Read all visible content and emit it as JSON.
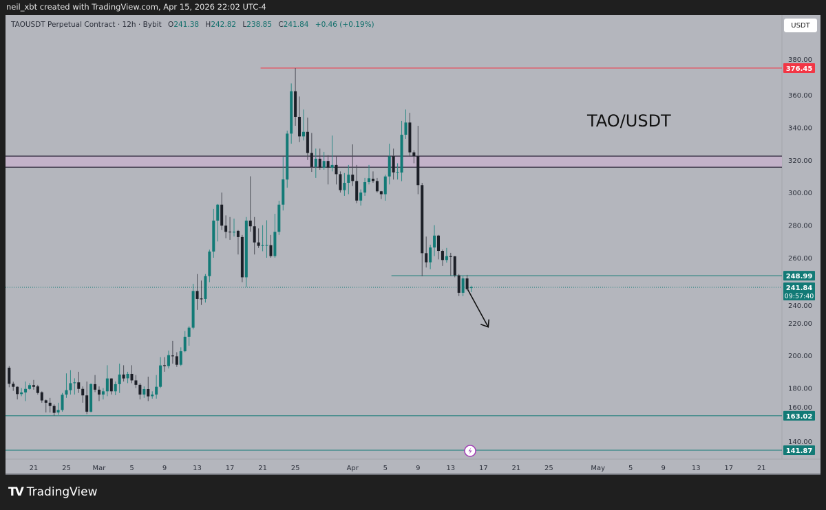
{
  "credit": "neil_xbt created with TradingView.com, Apr 15, 2026 22:02 UTC-4",
  "legend": {
    "symbol": "TAOUSDT Perpetual Contract · 12h · Bybit",
    "o_label": "O",
    "o": "241.38",
    "h_label": "H",
    "h": "242.82",
    "l_label": "L",
    "l": "238.85",
    "c_label": "C",
    "c": "241.84",
    "change": "+0.46 (+0.19%)"
  },
  "currency": "USDT",
  "annotation_text": "TAO/USDT",
  "brand": "TradingView",
  "colors": {
    "up": "#127a76",
    "down": "#1c1f27",
    "resistance": "#f23645",
    "level": "#127a76",
    "zone_fill": "#c3b2c9",
    "zone_line": "#2a2438",
    "bg": "#b4b6bd"
  },
  "chart_data": {
    "type": "candlestick",
    "title": "TAOUSDT Perpetual Contract · 12h · Bybit",
    "interval": "12h",
    "ylim": [
      136,
      383
    ],
    "y_ticks": [
      "380.00",
      "360.00",
      "340.00",
      "320.00",
      "300.00",
      "280.00",
      "260.00",
      "240.00",
      "220.00",
      "200.00",
      "180.00",
      "160.00",
      "140.00"
    ],
    "x_ticks": [
      {
        "label": "21",
        "index": 6
      },
      {
        "label": "25",
        "index": 14
      },
      {
        "label": "Mar",
        "index": 22
      },
      {
        "label": "5",
        "index": 30
      },
      {
        "label": "9",
        "index": 38
      },
      {
        "label": "13",
        "index": 46
      },
      {
        "label": "17",
        "index": 54
      },
      {
        "label": "21",
        "index": 62
      },
      {
        "label": "25",
        "index": 70
      },
      {
        "label": "Apr",
        "index": 84
      },
      {
        "label": "5",
        "index": 92
      },
      {
        "label": "9",
        "index": 100
      },
      {
        "label": "13",
        "index": 108
      },
      {
        "label": "17",
        "index": 116
      },
      {
        "label": "21",
        "index": 124
      },
      {
        "label": "25",
        "index": 132
      },
      {
        "label": "May",
        "index": 144
      },
      {
        "label": "5",
        "index": 152
      },
      {
        "label": "9",
        "index": 160
      },
      {
        "label": "13",
        "index": 168
      },
      {
        "label": "17",
        "index": 176
      },
      {
        "label": "21",
        "index": 184
      }
    ],
    "candles_ohlc": [
      [
        192.5,
        193.5,
        180.5,
        182.6
      ],
      [
        182.6,
        183.9,
        178.3,
        180.8
      ],
      [
        180.8,
        181,
        173,
        176.3
      ],
      [
        176.3,
        180,
        175,
        177.3
      ],
      [
        177.3,
        184,
        172,
        179.5
      ],
      [
        179.5,
        183,
        179,
        181.8
      ],
      [
        181.8,
        185,
        179,
        180.8
      ],
      [
        181,
        182,
        176,
        177
      ],
      [
        177.4,
        178,
        171,
        172.4
      ],
      [
        172.5,
        173,
        165,
        171
      ],
      [
        171,
        174,
        165,
        169
      ],
      [
        169,
        170,
        163,
        164.8
      ],
      [
        165,
        171,
        163.5,
        166.5
      ],
      [
        166.5,
        177,
        165.5,
        175.9
      ],
      [
        176,
        189,
        174,
        178.7
      ],
      [
        178.7,
        191,
        176,
        183
      ],
      [
        183,
        186,
        176,
        183.5
      ],
      [
        183.5,
        190,
        177,
        179.5
      ],
      [
        179.5,
        181,
        171,
        175.5
      ],
      [
        175.5,
        184,
        164,
        165.5
      ],
      [
        165.5,
        183,
        165,
        182.4
      ],
      [
        182.4,
        188,
        177.5,
        179
      ],
      [
        179,
        181,
        172,
        176
      ],
      [
        176,
        180,
        173,
        178
      ],
      [
        178,
        194,
        175,
        185.9
      ],
      [
        185.9,
        186,
        176,
        178
      ],
      [
        178,
        184,
        175.6,
        182.4
      ],
      [
        182.4,
        195,
        177,
        188.3
      ],
      [
        188.3,
        194,
        184,
        185.9
      ],
      [
        186,
        190,
        183,
        188.7
      ],
      [
        188.7,
        194,
        183,
        184.7
      ],
      [
        184.7,
        188,
        180,
        182
      ],
      [
        182,
        183,
        173,
        176
      ],
      [
        176,
        181,
        174,
        179.4
      ],
      [
        179.4,
        187,
        172,
        174.9
      ],
      [
        175,
        178,
        173.5,
        176
      ],
      [
        176,
        188,
        173.5,
        180.8
      ],
      [
        180.8,
        199,
        180,
        193.9
      ],
      [
        194,
        199,
        190,
        193.5
      ],
      [
        193.5,
        203,
        192,
        200.2
      ],
      [
        200,
        209,
        195,
        199.5
      ],
      [
        199.5,
        202,
        193,
        194.3
      ],
      [
        194.3,
        205,
        193.5,
        202.6
      ],
      [
        202.6,
        215,
        202,
        211.5
      ],
      [
        211.5,
        218,
        206,
        217.1
      ],
      [
        217.1,
        244,
        216,
        239.6
      ],
      [
        239.6,
        250,
        228,
        234.7
      ],
      [
        235,
        246,
        231,
        234.5
      ],
      [
        234.7,
        250,
        232.5,
        248.7
      ],
      [
        248.7,
        265,
        245,
        263.8
      ],
      [
        263.8,
        290,
        260,
        282.8
      ],
      [
        282.8,
        293,
        270,
        292.6
      ],
      [
        292.6,
        300,
        277,
        279.7
      ],
      [
        279.7,
        286,
        272,
        275.9
      ],
      [
        276,
        285,
        271,
        275.8
      ],
      [
        275.5,
        284,
        273,
        276
      ],
      [
        276.5,
        277,
        262,
        272.7
      ],
      [
        272.7,
        274,
        245,
        248
      ],
      [
        248,
        285,
        242,
        282.8
      ],
      [
        282.8,
        310,
        276,
        279.3
      ],
      [
        279.3,
        285,
        262,
        269.4
      ],
      [
        269.4,
        278,
        266,
        267.3
      ],
      [
        267.6,
        280,
        264,
        267.7
      ],
      [
        267.5,
        283,
        260,
        267.8
      ],
      [
        267.7,
        274,
        260,
        261
      ],
      [
        261,
        287,
        260,
        275.9
      ],
      [
        275.9,
        295,
        274,
        292.6
      ],
      [
        292.6,
        322,
        289,
        308.1
      ],
      [
        308,
        338,
        303,
        336.2
      ],
      [
        336.2,
        367,
        330,
        362.2
      ],
      [
        362.2,
        376.45,
        341,
        346.5
      ],
      [
        346.5,
        359,
        331,
        334.5
      ],
      [
        334.5,
        351,
        332,
        337.3
      ],
      [
        337.3,
        346,
        320,
        324.3
      ],
      [
        324.3,
        336.6,
        312.7,
        315.8
      ],
      [
        315.8,
        327,
        309,
        320.8
      ],
      [
        320.8,
        327,
        314,
        315.3
      ],
      [
        315.3,
        325,
        314,
        319.4
      ],
      [
        319.4,
        323,
        305,
        315.3
      ],
      [
        315.3,
        335,
        313,
        317
      ],
      [
        317,
        322,
        305,
        311.3
      ],
      [
        311.3,
        313,
        300,
        301.5
      ],
      [
        301.5,
        312,
        298,
        306
      ],
      [
        306,
        317,
        299,
        311
      ],
      [
        311,
        329.6,
        304,
        307.1
      ],
      [
        307.1,
        317,
        293.5,
        295.1
      ],
      [
        295.1,
        302,
        292,
        300
      ],
      [
        300,
        309,
        298,
        306.4
      ],
      [
        306.4,
        317,
        305,
        308.8
      ],
      [
        308.5,
        313,
        306,
        307.1
      ],
      [
        307.1,
        309,
        300,
        300.8
      ],
      [
        300.8,
        301,
        296,
        299
      ],
      [
        299,
        311,
        295,
        309.9
      ],
      [
        309.9,
        330,
        305,
        322.3
      ],
      [
        322.3,
        327,
        308,
        312.4
      ],
      [
        312.6,
        318,
        308,
        312.7
      ],
      [
        312.3,
        344,
        307,
        335.5
      ],
      [
        335.5,
        351,
        333,
        343
      ],
      [
        343,
        349,
        322,
        324.7
      ],
      [
        324.7,
        326,
        318,
        322.3
      ],
      [
        322.3,
        341,
        299,
        304.6
      ],
      [
        304.6,
        306,
        248.6,
        262.8
      ],
      [
        262.8,
        273,
        254,
        257.2
      ],
      [
        257.2,
        268,
        253,
        266.3
      ],
      [
        266.3,
        280,
        261,
        273.6
      ],
      [
        273.6,
        274,
        259,
        264.2
      ],
      [
        264.2,
        265,
        255,
        258.6
      ],
      [
        258.6,
        266,
        257,
        261
      ],
      [
        261,
        263,
        249,
        260.5
      ],
      [
        260.9,
        261,
        248,
        249.2
      ],
      [
        249.2,
        250,
        236.5,
        238.5
      ],
      [
        238.5,
        249,
        236.4,
        247.3
      ],
      [
        247.3,
        249.5,
        240,
        240.7
      ],
      [
        241.38,
        242.82,
        238.85,
        241.84
      ]
    ],
    "levels": [
      {
        "price": 376.45,
        "label": "376.45",
        "kind": "resistance",
        "from_index": 62
      },
      {
        "price": 248.99,
        "label": "248.99",
        "kind": "level",
        "from_index": 94
      },
      {
        "price": 163.02,
        "label": "163.02",
        "kind": "level",
        "from_index": 0
      },
      {
        "price": 141.87,
        "label": "141.87",
        "kind": "level",
        "from_index": 0
      }
    ],
    "zone": {
      "top": 322.4,
      "bottom": 315.6
    },
    "last_price": {
      "label": "241.84",
      "price": 241.84,
      "countdown": "09:57:40"
    },
    "arrow": {
      "from": {
        "index": 112,
        "price": 240.5
      },
      "to": {
        "index": 117,
        "price": 217.5
      }
    }
  }
}
